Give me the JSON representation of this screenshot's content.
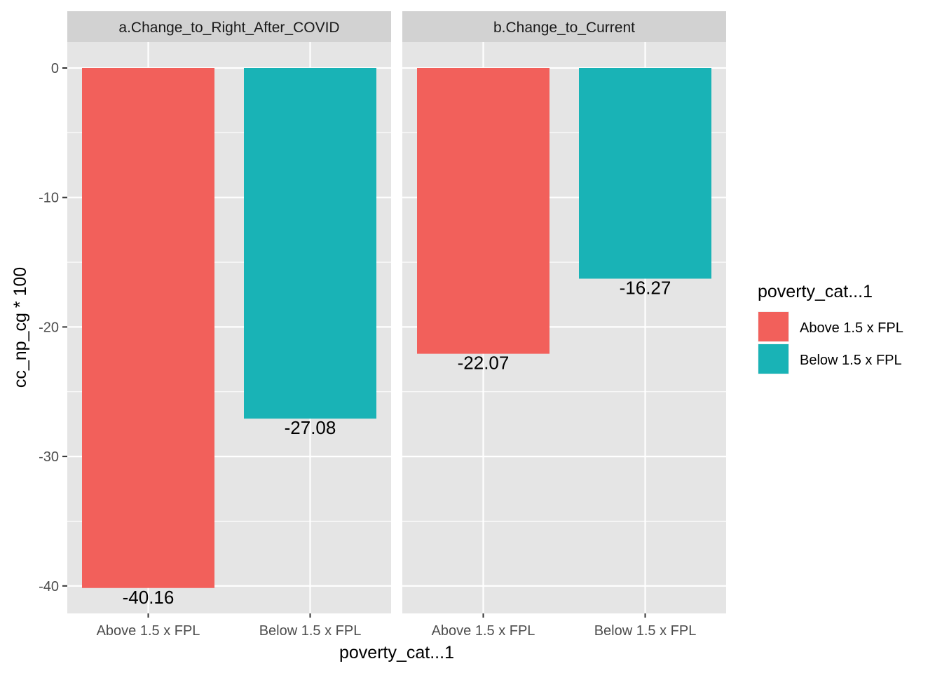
{
  "chart_data": {
    "type": "bar",
    "facets": [
      {
        "title": "a.Change_to_Right_After_COVID",
        "categories": [
          "Above 1.5 x FPL",
          "Below 1.5 x FPL"
        ],
        "values": [
          -40.16,
          -27.08
        ],
        "labels": [
          "-40.16",
          "-27.08"
        ]
      },
      {
        "title": "b.Change_to_Current",
        "categories": [
          "Above 1.5 x FPL",
          "Below 1.5 x FPL"
        ],
        "values": [
          -22.07,
          -16.27
        ],
        "labels": [
          "-22.07",
          "-16.27"
        ]
      }
    ],
    "xlabel": "poverty_cat...1",
    "ylabel": "cc_np_cg * 100",
    "ylim": [
      -42,
      2
    ],
    "yticks": [
      0,
      -10,
      -20,
      -30,
      -40
    ],
    "ytick_labels": [
      "0",
      "-10",
      "-20",
      "-30",
      "-40"
    ],
    "legend": {
      "title": "poverty_cat...1",
      "position": "right",
      "items": [
        {
          "label": "Above 1.5 x FPL",
          "color": "#F2605B"
        },
        {
          "label": "Below 1.5 x FPL",
          "color": "#19B3B6"
        }
      ]
    },
    "colors": {
      "panel_background": "#E5E5E5",
      "strip_background": "#D2D2D2",
      "grid": "#FFFFFF"
    },
    "grid": true
  }
}
